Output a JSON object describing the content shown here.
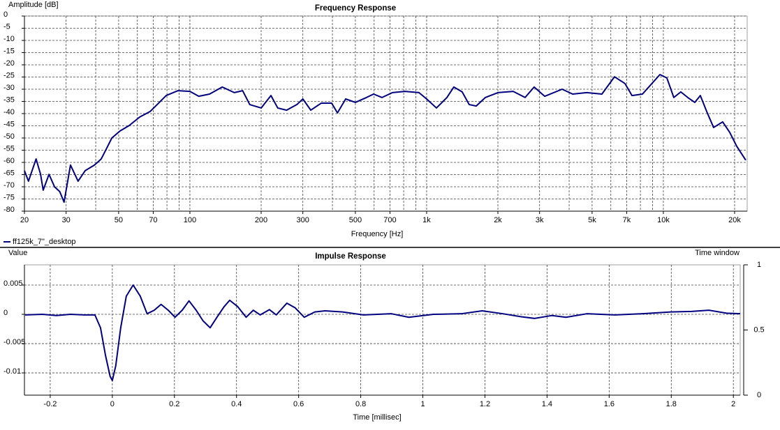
{
  "chart_data": [
    {
      "type": "line",
      "title": "Frequency Response",
      "ylabel": "Amplitude [dB]",
      "xlabel": "Frequency [Hz]",
      "xscale": "log",
      "xlim": [
        20,
        22600
      ],
      "ylim": [
        -80,
        0
      ],
      "grid": true,
      "legend": "bottom-left",
      "xticks": [
        20,
        30,
        50,
        70,
        100,
        200,
        300,
        500,
        700,
        {
          "value": 1000,
          "label": "1k"
        },
        {
          "value": 2000,
          "label": "2k"
        },
        {
          "value": 3000,
          "label": "3k"
        },
        {
          "value": 5000,
          "label": "5k"
        },
        {
          "value": 7000,
          "label": "7k"
        },
        {
          "value": 10000,
          "label": "10k"
        },
        {
          "value": 20000,
          "label": "20k"
        }
      ],
      "minor_xticks": [
        40,
        60,
        80,
        90,
        400,
        600,
        800,
        900,
        4000,
        6000,
        8000,
        9000
      ],
      "yticks": [
        0,
        -5,
        -10,
        -15,
        -20,
        -25,
        -30,
        -35,
        -40,
        -45,
        -50,
        -55,
        -60,
        -65,
        -70,
        -75,
        -80
      ],
      "series": [
        {
          "name": "ff125k_7\"_desktop",
          "color": "#000080",
          "x": [
            20,
            20.8,
            22.4,
            23.4,
            24,
            25.4,
            26.8,
            28.2,
            29.4,
            31.3,
            33.7,
            36.1,
            39.5,
            42.2,
            44.3,
            46.8,
            50.7,
            55.4,
            61.4,
            68,
            72.7,
            79.4,
            89.1,
            100,
            109,
            121,
            137,
            154,
            167,
            179,
            200,
            220,
            235,
            256,
            283,
            300,
            324,
            359,
            397,
            420,
            455,
            500,
            557,
            597,
            648,
            717,
            810,
            928,
            1000,
            1100,
            1218,
            1303,
            1413,
            1513,
            1620,
            1770,
            2000,
            2321,
            2606,
            2846,
            3153,
            3736,
            4139,
            4745,
            5500,
            6220,
            6888,
            7370,
            8160,
            9670,
            10350,
            11070,
            11850,
            12680,
            13580,
            14330,
            15240,
            16300,
            17810,
            19070,
            20420,
            22290
          ],
          "values": [
            -63.4,
            -67.7,
            -58.6,
            -64.9,
            -71.4,
            -64.9,
            -70,
            -72,
            -76.3,
            -61.1,
            -67.7,
            -63.4,
            -61.1,
            -58.6,
            -54.6,
            -50,
            -47.1,
            -44.9,
            -41.4,
            -39.1,
            -36.3,
            -32.6,
            -30.6,
            -30.9,
            -32.9,
            -32,
            -29.1,
            -31.4,
            -30.6,
            -36.3,
            -37.7,
            -32.6,
            -37.7,
            -38.6,
            -36.3,
            -34,
            -38.6,
            -35.7,
            -35.7,
            -39.7,
            -34,
            -35.4,
            -33.4,
            -32,
            -33.4,
            -31.4,
            -30.9,
            -31.4,
            -34,
            -37.7,
            -33.4,
            -29.1,
            -31.1,
            -36.3,
            -36.9,
            -33.4,
            -31.4,
            -30.9,
            -33.4,
            -29.1,
            -32.9,
            -30,
            -32,
            -31.4,
            -32,
            -24.9,
            -27.7,
            -32.6,
            -32,
            -24,
            -25.4,
            -33.4,
            -31.1,
            -33.4,
            -35.4,
            -32.6,
            -39.1,
            -45.7,
            -43.4,
            -47.7,
            -53.4,
            -59.1
          ]
        }
      ]
    },
    {
      "type": "line",
      "title": "Impulse Response",
      "ylabel": "Value",
      "xlabel": "Time [millisec]",
      "y2label": "Time window",
      "xlim": [
        -0.283,
        2.022
      ],
      "ylim": [
        -0.0138,
        0.00845
      ],
      "y2lim": [
        0,
        1
      ],
      "grid": true,
      "xticks": [
        -0.2,
        0,
        0.2,
        0.4,
        0.6,
        0.8,
        1,
        1.2,
        1.4,
        1.6,
        1.8,
        2
      ],
      "yticks": [
        0.005,
        0,
        -0.005,
        -0.01
      ],
      "y2ticks": [
        0,
        0.5,
        1
      ],
      "series": [
        {
          "color": "#000080",
          "x": [
            -0.281,
            -0.225,
            -0.18,
            -0.135,
            -0.09,
            -0.056,
            -0.038,
            -0.022,
            -0.007,
            0,
            0.011,
            0.027,
            0.045,
            0.067,
            0.09,
            0.112,
            0.135,
            0.157,
            0.18,
            0.202,
            0.225,
            0.247,
            0.27,
            0.292,
            0.315,
            0.337,
            0.36,
            0.378,
            0.404,
            0.431,
            0.454,
            0.476,
            0.506,
            0.528,
            0.562,
            0.589,
            0.618,
            0.652,
            0.685,
            0.742,
            0.809,
            0.899,
            0.955,
            1.034,
            1.124,
            1.191,
            1.258,
            1.315,
            1.36,
            1.416,
            1.461,
            1.528,
            1.618,
            1.708,
            1.798,
            1.865,
            1.921,
            1.978,
            2.022
          ],
          "values": [
            -0.0001,
            0,
            -0.0002,
            0,
            -0.0001,
            -0.0001,
            -0.0023,
            -0.007,
            -0.0106,
            -0.0113,
            -0.0088,
            -0.0023,
            0.0031,
            0.005,
            0.0031,
            0.0001,
            0.0007,
            0.0017,
            0.0007,
            -0.0005,
            0.0007,
            0.0023,
            0.0007,
            -0.0011,
            -0.0023,
            -0.0005,
            0.0013,
            0.0024,
            0.0013,
            -0.0005,
            0.0007,
            -0.0001,
            0.0008,
            -0.0001,
            0.0019,
            0.0011,
            -0.0005,
            0.0004,
            0.0006,
            0.0004,
            -0.0001,
            0.0001,
            -0.0005,
            0,
            0.0001,
            0.0006,
            0.0001,
            -0.0004,
            -0.0007,
            -0.0002,
            -0.0005,
            0.0001,
            -0.0001,
            0.0001,
            0.0004,
            0.0005,
            0.0007,
            0.0002,
            0.0001
          ]
        }
      ]
    }
  ]
}
